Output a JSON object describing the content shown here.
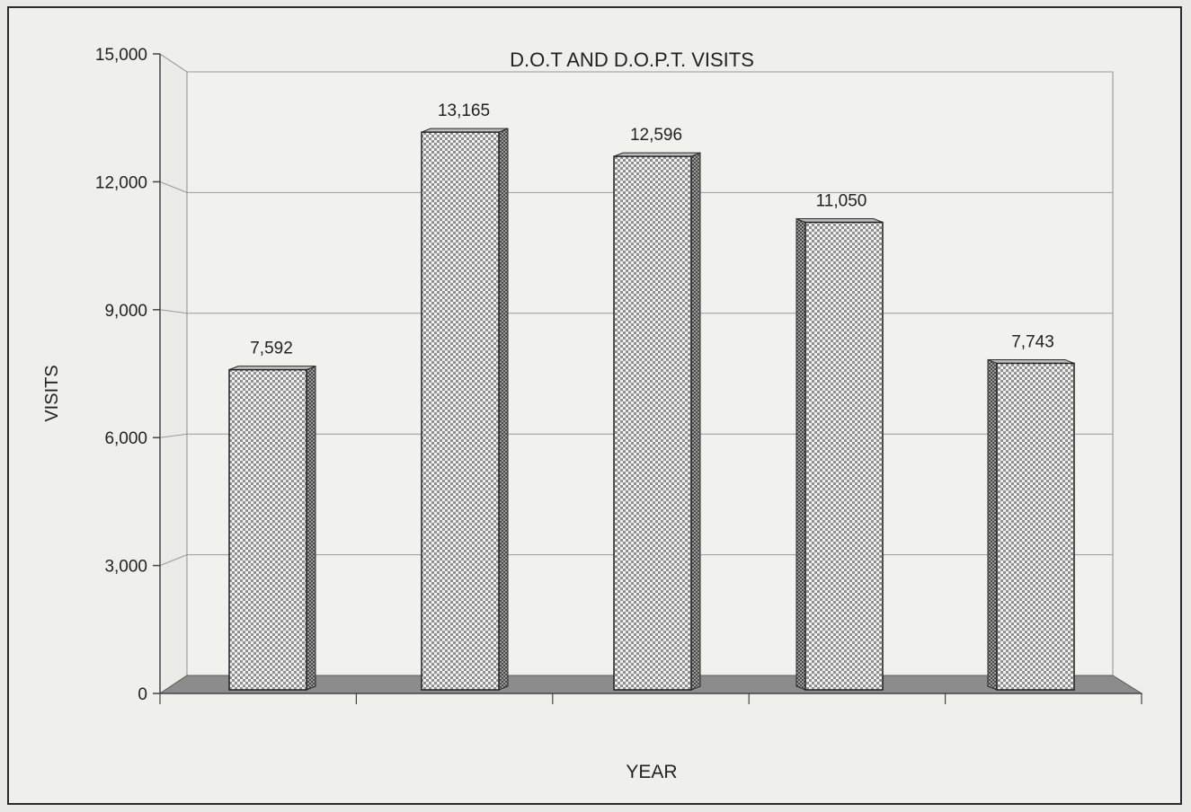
{
  "chart_data": {
    "type": "bar",
    "title": "D.O.T AND D.O.P.T. VISITS",
    "xlabel": "YEAR",
    "ylabel": "VISITS",
    "categories": [
      "",
      "",
      "",
      "",
      ""
    ],
    "values": [
      7592,
      13165,
      12596,
      11050,
      7743
    ],
    "data_labels": [
      "7,592",
      "13,165",
      "12,596",
      "11,050",
      "7,743"
    ],
    "yticks": [
      0,
      3000,
      6000,
      9000,
      12000,
      15000
    ],
    "ytick_labels": [
      "0",
      "3,000",
      "6,000",
      "9,000",
      "12,000",
      "15,000"
    ],
    "ylim": [
      0,
      15000
    ],
    "grid": true,
    "legend": "none",
    "colors": {
      "bar_fill": "#cfcfcf",
      "bar_side": "#8a8a8a",
      "floor": "#8c8c8c",
      "grid": "#9a9a9a",
      "axis": "#444444"
    }
  }
}
